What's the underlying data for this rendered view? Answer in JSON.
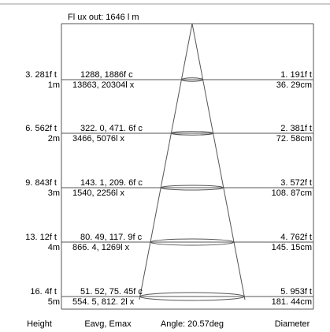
{
  "flux_label": "Fl ux out: 1646 l m",
  "footer": {
    "height": "Height",
    "illuminance": "Eavg, Emax",
    "angle": "Angle: 20.57deg",
    "diameter": "Diameter"
  },
  "rows": [
    {
      "ft": "3. 281f t",
      "m": "1m",
      "fc": "1288, 1886f c",
      "lx": "13863, 20304l x",
      "dia_ft": "1. 191f t",
      "dia_cm": "36. 29cm"
    },
    {
      "ft": "6. 562f t",
      "m": "2m",
      "fc": "322. 0, 471. 6f c",
      "lx": "3466, 5076l x",
      "dia_ft": "2. 381f t",
      "dia_cm": "72. 58cm"
    },
    {
      "ft": "9. 843f t",
      "m": "3m",
      "fc": "143. 1, 209. 6f c",
      "lx": "1540, 2256l x",
      "dia_ft": "3. 572f t",
      "dia_cm": "108. 87cm"
    },
    {
      "ft": "13. 12f t",
      "m": "4m",
      "fc": "80. 49, 117. 9f c",
      "lx": "866. 4, 1269l x",
      "dia_ft": "4. 762f t",
      "dia_cm": "145. 15cm"
    },
    {
      "ft": "16. 4f t",
      "m": "5m",
      "fc": "51. 52, 75. 45f c",
      "lx": "554. 5, 812. 2l x",
      "dia_ft": "5. 953f t",
      "dia_cm": "181. 44cm"
    }
  ],
  "colors": {
    "line": "#555555",
    "frame": "#999999",
    "text": "#000000"
  }
}
